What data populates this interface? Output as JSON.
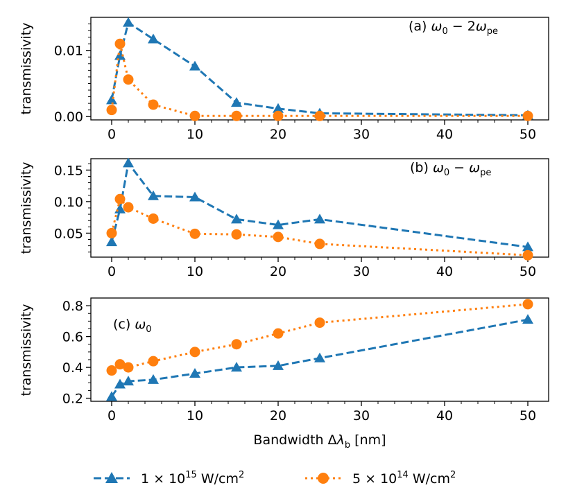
{
  "colors": {
    "series1": "#1f77b4",
    "series2": "#ff7f0e"
  },
  "chart_data": [
    {
      "type": "line",
      "annotation_parts": [
        "(a) ",
        "ω",
        "0",
        " − 2",
        "ω",
        "pe"
      ],
      "ylabel": "transmissivity",
      "ylim": [
        -0.0005,
        0.015
      ],
      "yticks": [
        0.0,
        0.01
      ],
      "ytick_labels": [
        "0.00",
        "0.01"
      ],
      "yminor": [
        0.001,
        0.002,
        0.003,
        0.004,
        0.005,
        0.006,
        0.007,
        0.008,
        0.009,
        0.011,
        0.012,
        0.013,
        0.014
      ],
      "xlim": [
        -2.5,
        52.5
      ],
      "xticks": [
        0,
        10,
        20,
        30,
        40,
        50
      ],
      "xtick_labels": [
        "0",
        "10",
        "20",
        "30",
        "40",
        "50"
      ],
      "series": [
        {
          "name": "1 × 10^15 W/cm^2",
          "marker": "triangle",
          "style": "dashed",
          "x": [
            0,
            1,
            2,
            5,
            10,
            15,
            20,
            25,
            50
          ],
          "y": [
            0.0025,
            0.0092,
            0.0142,
            0.0117,
            0.0076,
            0.0021,
            0.0012,
            0.0005,
            0.0002
          ]
        },
        {
          "name": "5 × 10^14 W/cm^2",
          "marker": "circle",
          "style": "dotted",
          "x": [
            0,
            1,
            2,
            5,
            10,
            15,
            20,
            25,
            50
          ],
          "y": [
            0.001,
            0.011,
            0.0056,
            0.0018,
            0.0001,
            0.0001,
            0.0001,
            0.0001,
            0.0001
          ]
        }
      ]
    },
    {
      "type": "line",
      "annotation_parts": [
        "(b) ",
        "ω",
        "0",
        " − ",
        "ω",
        "pe"
      ],
      "ylabel": "transmissivity",
      "ylim": [
        0.012,
        0.168
      ],
      "yticks": [
        0.05,
        0.1,
        0.15
      ],
      "ytick_labels": [
        "0.05",
        "0.10",
        "0.15"
      ],
      "yminor": [
        0.02,
        0.03,
        0.04,
        0.06,
        0.07,
        0.08,
        0.09,
        0.11,
        0.12,
        0.13,
        0.14,
        0.16
      ],
      "xlim": [
        -2.5,
        52.5
      ],
      "xticks": [
        0,
        10,
        20,
        30,
        40,
        50
      ],
      "xtick_labels": [
        "0",
        "10",
        "20",
        "30",
        "40",
        "50"
      ],
      "series": [
        {
          "name": "1 × 10^15 W/cm^2",
          "marker": "triangle",
          "style": "dashed",
          "x": [
            0,
            1,
            2,
            5,
            10,
            15,
            20,
            25,
            50
          ],
          "y": [
            0.036,
            0.088,
            0.161,
            0.109,
            0.107,
            0.072,
            0.063,
            0.072,
            0.028
          ]
        },
        {
          "name": "5 × 10^14 W/cm^2",
          "marker": "circle",
          "style": "dotted",
          "x": [
            0,
            1,
            2,
            5,
            10,
            15,
            20,
            25,
            50
          ],
          "y": [
            0.05,
            0.104,
            0.091,
            0.073,
            0.049,
            0.048,
            0.044,
            0.033,
            0.015
          ]
        }
      ]
    },
    {
      "type": "line",
      "annotation_parts": [
        "(c) ",
        "ω",
        "0"
      ],
      "ylabel": "transmissivity",
      "ylim": [
        0.18,
        0.85
      ],
      "yticks": [
        0.2,
        0.4,
        0.6,
        0.8
      ],
      "ytick_labels": [
        "0.2",
        "0.4",
        "0.6",
        "0.8"
      ],
      "yminor": [
        0.25,
        0.3,
        0.35,
        0.45,
        0.5,
        0.55,
        0.65,
        0.7,
        0.75
      ],
      "xlim": [
        -2.5,
        52.5
      ],
      "xticks": [
        0,
        10,
        20,
        30,
        40,
        50
      ],
      "xtick_labels": [
        "0",
        "10",
        "20",
        "30",
        "40",
        "50"
      ],
      "xlabel_parts": [
        "Bandwidth ",
        "Δ",
        "λ",
        "b",
        " [nm]"
      ],
      "series": [
        {
          "name": "1 × 10^15 W/cm^2",
          "marker": "triangle",
          "style": "dashed",
          "x": [
            0,
            1,
            2,
            5,
            10,
            15,
            20,
            25,
            50
          ],
          "y": [
            0.21,
            0.29,
            0.31,
            0.32,
            0.36,
            0.4,
            0.41,
            0.46,
            0.71
          ]
        },
        {
          "name": "5 × 10^14 W/cm^2",
          "marker": "circle",
          "style": "dotted",
          "x": [
            0,
            1,
            2,
            5,
            10,
            15,
            20,
            25,
            50
          ],
          "y": [
            0.38,
            0.42,
            0.4,
            0.44,
            0.5,
            0.55,
            0.62,
            0.69,
            0.81
          ]
        }
      ]
    }
  ],
  "legend": {
    "entries": [
      {
        "pre": "1 × 10",
        "sup": "15",
        "post": " W/cm",
        "sup2": "2"
      },
      {
        "pre": "5 × 10",
        "sup": "14",
        "post": " W/cm",
        "sup2": "2"
      }
    ]
  }
}
